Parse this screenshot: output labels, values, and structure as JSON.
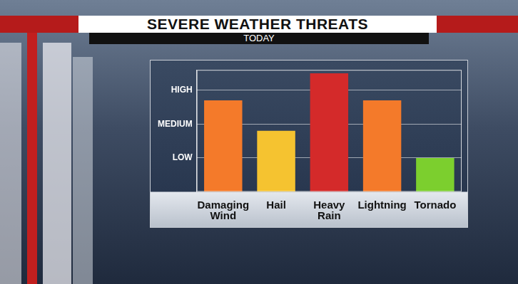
{
  "chart_data": {
    "type": "bar",
    "title": "SEVERE WEATHER THREATS",
    "subtitle": "TODAY",
    "categories": [
      "Damaging Wind",
      "Hail",
      "Heavy Rain",
      "Lightning",
      "Tornado"
    ],
    "values": [
      2.7,
      1.8,
      3.5,
      2.7,
      1.0
    ],
    "colors": [
      "#f47a2a",
      "#f5c330",
      "#d42a2a",
      "#f47a2a",
      "#7ccf2e"
    ],
    "ylim": [
      0,
      3.6
    ],
    "yticks": [
      {
        "value": 1,
        "label": "LOW"
      },
      {
        "value": 2,
        "label": "MEDIUM"
      },
      {
        "value": 3,
        "label": "HIGH"
      }
    ],
    "grid": true
  }
}
